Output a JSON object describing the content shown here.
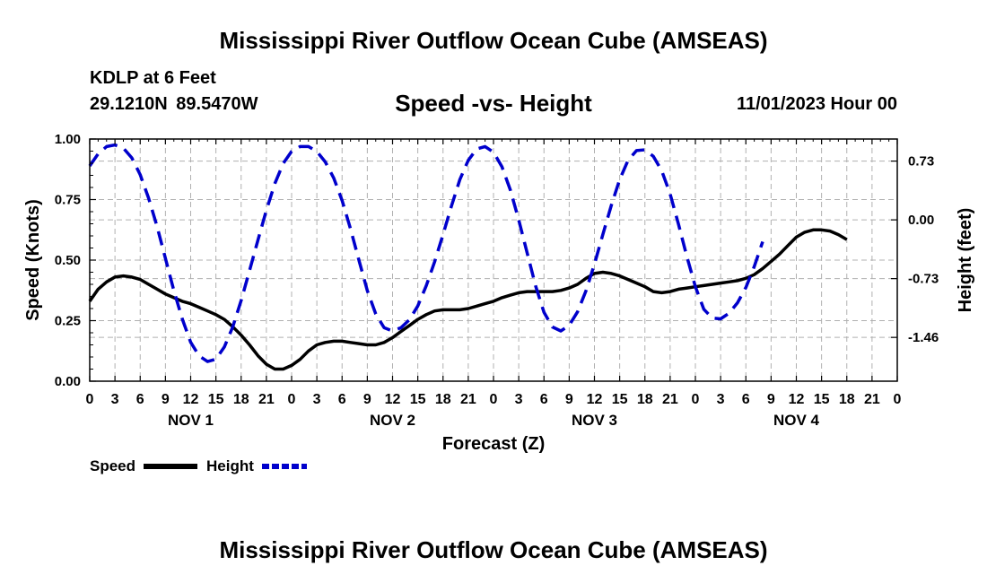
{
  "titles": {
    "main": "Mississippi River Outflow Ocean Cube (AMSEAS)",
    "bottom": "Mississippi River Outflow Ocean Cube (AMSEAS)",
    "station": "KDLP at 6 Feet",
    "coords": "29.1210N  89.5470W",
    "subtitle": "Speed -vs- Height",
    "datetime": "11/01/2023 Hour 00"
  },
  "colors": {
    "speed": "#000000",
    "height": "#0000cc",
    "grid": "#b0b0b0"
  },
  "chart_data": {
    "type": "line",
    "title": "Speed -vs- Height",
    "xlabel": "Forecast (Z)",
    "ylabel": "Speed (Knots)",
    "y2label": "Height (feet)",
    "xlim": [
      0,
      96
    ],
    "ylim": [
      0,
      1
    ],
    "y2lim": [
      -2.004,
      1.004
    ],
    "x_tick_values": [
      0,
      3,
      6,
      9,
      12,
      15,
      18,
      21,
      24,
      27,
      30,
      33,
      36,
      39,
      42,
      45,
      48,
      51,
      54,
      57,
      60,
      63,
      66,
      69,
      72,
      75,
      78,
      81,
      84,
      87,
      90,
      93,
      96
    ],
    "x_tick_labels": [
      "0",
      "3",
      "6",
      "9",
      "12",
      "15",
      "18",
      "21",
      "0",
      "3",
      "6",
      "9",
      "12",
      "15",
      "18",
      "21",
      "0",
      "3",
      "6",
      "9",
      "12",
      "15",
      "18",
      "21",
      "0",
      "3",
      "6",
      "9",
      "12",
      "15",
      "18",
      "21",
      "0"
    ],
    "day_labels": [
      {
        "x": 12,
        "label": "NOV 1"
      },
      {
        "x": 36,
        "label": "NOV 2"
      },
      {
        "x": 60,
        "label": "NOV 3"
      },
      {
        "x": 84,
        "label": "NOV 4"
      }
    ],
    "y_ticks": [
      0,
      0.25,
      0.5,
      0.75,
      1.0
    ],
    "y_tick_labels": [
      "0.00",
      "0.25",
      "0.50",
      "0.75",
      "1.00"
    ],
    "y2_ticks": [
      0.73,
      0.0,
      -0.73,
      -1.46
    ],
    "y2_tick_labels": [
      "0.73",
      "0.00",
      "-0.73",
      "-1.46"
    ],
    "grid": true,
    "series": [
      {
        "name": "Speed",
        "axis": "left",
        "style": "solid",
        "points": [
          [
            0,
            0.33
          ],
          [
            1,
            0.38
          ],
          [
            2,
            0.41
          ],
          [
            3,
            0.43
          ],
          [
            4,
            0.435
          ],
          [
            5,
            0.43
          ],
          [
            6,
            0.42
          ],
          [
            7,
            0.4
          ],
          [
            8,
            0.38
          ],
          [
            9,
            0.36
          ],
          [
            10,
            0.345
          ],
          [
            11,
            0.33
          ],
          [
            12,
            0.32
          ],
          [
            13,
            0.305
          ],
          [
            14,
            0.29
          ],
          [
            15,
            0.275
          ],
          [
            16,
            0.255
          ],
          [
            17,
            0.225
          ],
          [
            18,
            0.19
          ],
          [
            19,
            0.15
          ],
          [
            20,
            0.105
          ],
          [
            21,
            0.07
          ],
          [
            22,
            0.05
          ],
          [
            23,
            0.05
          ],
          [
            24,
            0.065
          ],
          [
            25,
            0.09
          ],
          [
            26,
            0.125
          ],
          [
            27,
            0.15
          ],
          [
            28,
            0.16
          ],
          [
            29,
            0.165
          ],
          [
            30,
            0.165
          ],
          [
            31,
            0.16
          ],
          [
            32,
            0.155
          ],
          [
            33,
            0.15
          ],
          [
            34,
            0.15
          ],
          [
            35,
            0.16
          ],
          [
            36,
            0.18
          ],
          [
            37,
            0.205
          ],
          [
            38,
            0.23
          ],
          [
            39,
            0.255
          ],
          [
            40,
            0.275
          ],
          [
            41,
            0.29
          ],
          [
            42,
            0.295
          ],
          [
            43,
            0.295
          ],
          [
            44,
            0.295
          ],
          [
            45,
            0.3
          ],
          [
            46,
            0.31
          ],
          [
            47,
            0.32
          ],
          [
            48,
            0.33
          ],
          [
            49,
            0.345
          ],
          [
            50,
            0.355
          ],
          [
            51,
            0.365
          ],
          [
            52,
            0.37
          ],
          [
            53,
            0.37
          ],
          [
            54,
            0.37
          ],
          [
            55,
            0.37
          ],
          [
            56,
            0.375
          ],
          [
            57,
            0.385
          ],
          [
            58,
            0.4
          ],
          [
            59,
            0.425
          ],
          [
            60,
            0.445
          ],
          [
            61,
            0.45
          ],
          [
            62,
            0.445
          ],
          [
            63,
            0.435
          ],
          [
            64,
            0.42
          ],
          [
            65,
            0.405
          ],
          [
            66,
            0.39
          ],
          [
            67,
            0.37
          ],
          [
            68,
            0.365
          ],
          [
            69,
            0.37
          ],
          [
            70,
            0.38
          ],
          [
            71,
            0.385
          ],
          [
            72,
            0.39
          ],
          [
            73,
            0.395
          ],
          [
            74,
            0.4
          ],
          [
            75,
            0.405
          ],
          [
            76,
            0.41
          ],
          [
            77,
            0.415
          ],
          [
            78,
            0.425
          ],
          [
            79,
            0.44
          ],
          [
            80,
            0.465
          ],
          [
            81,
            0.495
          ],
          [
            82,
            0.525
          ],
          [
            83,
            0.56
          ],
          [
            84,
            0.595
          ],
          [
            85,
            0.615
          ],
          [
            86,
            0.625
          ],
          [
            87,
            0.625
          ],
          [
            88,
            0.62
          ],
          [
            89,
            0.605
          ],
          [
            90,
            0.585
          ]
        ]
      },
      {
        "name": "Height",
        "axis": "right",
        "style": "dashed",
        "points": [
          [
            0,
            0.67
          ],
          [
            1,
            0.82
          ],
          [
            2,
            0.91
          ],
          [
            3,
            0.93
          ],
          [
            4,
            0.89
          ],
          [
            5,
            0.77
          ],
          [
            6,
            0.56
          ],
          [
            7,
            0.27
          ],
          [
            8,
            -0.08
          ],
          [
            9,
            -0.48
          ],
          [
            10,
            -0.88
          ],
          [
            11,
            -1.23
          ],
          [
            12,
            -1.52
          ],
          [
            13,
            -1.69
          ],
          [
            14,
            -1.76
          ],
          [
            15,
            -1.73
          ],
          [
            16,
            -1.58
          ],
          [
            17,
            -1.33
          ],
          [
            18,
            -1.0
          ],
          [
            19,
            -0.63
          ],
          [
            20,
            -0.25
          ],
          [
            21,
            0.12
          ],
          [
            22,
            0.45
          ],
          [
            23,
            0.7
          ],
          [
            24,
            0.85
          ],
          [
            25,
            0.91
          ],
          [
            26,
            0.91
          ],
          [
            27,
            0.85
          ],
          [
            28,
            0.72
          ],
          [
            29,
            0.52
          ],
          [
            30,
            0.24
          ],
          [
            31,
            -0.11
          ],
          [
            32,
            -0.5
          ],
          [
            33,
            -0.88
          ],
          [
            34,
            -1.17
          ],
          [
            35,
            -1.34
          ],
          [
            36,
            -1.38
          ],
          [
            37,
            -1.34
          ],
          [
            38,
            -1.24
          ],
          [
            39,
            -1.07
          ],
          [
            40,
            -0.82
          ],
          [
            41,
            -0.52
          ],
          [
            42,
            -0.18
          ],
          [
            43,
            0.17
          ],
          [
            44,
            0.5
          ],
          [
            45,
            0.74
          ],
          [
            46,
            0.88
          ],
          [
            47,
            0.91
          ],
          [
            48,
            0.84
          ],
          [
            49,
            0.66
          ],
          [
            50,
            0.37
          ],
          [
            51,
            0.0
          ],
          [
            52,
            -0.41
          ],
          [
            53,
            -0.82
          ],
          [
            54,
            -1.15
          ],
          [
            55,
            -1.33
          ],
          [
            56,
            -1.38
          ],
          [
            57,
            -1.31
          ],
          [
            58,
            -1.14
          ],
          [
            59,
            -0.88
          ],
          [
            60,
            -0.55
          ],
          [
            61,
            -0.18
          ],
          [
            62,
            0.18
          ],
          [
            63,
            0.5
          ],
          [
            64,
            0.74
          ],
          [
            65,
            0.86
          ],
          [
            66,
            0.87
          ],
          [
            67,
            0.79
          ],
          [
            68,
            0.61
          ],
          [
            69,
            0.32
          ],
          [
            70,
            -0.06
          ],
          [
            71,
            -0.46
          ],
          [
            72,
            -0.83
          ],
          [
            73,
            -1.11
          ],
          [
            74,
            -1.22
          ],
          [
            75,
            -1.23
          ],
          [
            76,
            -1.16
          ],
          [
            77,
            -1.03
          ],
          [
            78,
            -0.84
          ],
          [
            79,
            -0.58
          ],
          [
            80,
            -0.27
          ]
        ]
      }
    ],
    "legend": [
      {
        "label": "Speed",
        "color": "#000000",
        "style": "solid"
      },
      {
        "label": "Height",
        "color": "#0000cc",
        "style": "dashed"
      }
    ]
  }
}
